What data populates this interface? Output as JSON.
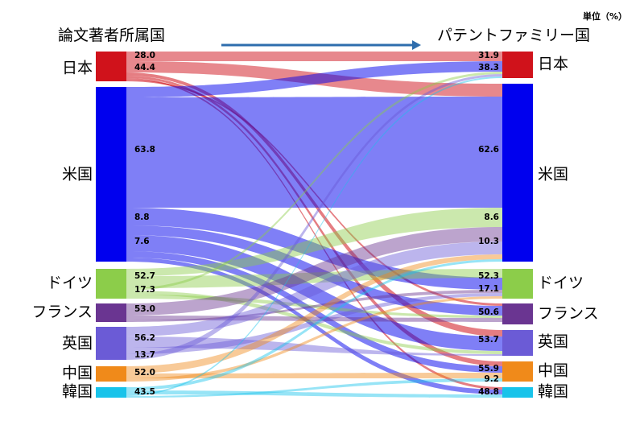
{
  "header": {
    "left_title": "論文著者所属国",
    "right_title": "パテントファミリー国",
    "unit": "単位（%）"
  },
  "chart_data": {
    "type": "sankey",
    "left_nodes": [
      {
        "id": "jp",
        "label": "日本",
        "color": "#d0121b"
      },
      {
        "id": "us",
        "label": "米国",
        "color": "#0000ee"
      },
      {
        "id": "de",
        "label": "ドイツ",
        "color": "#8ccd4a"
      },
      {
        "id": "fr",
        "label": "フランス",
        "color": "#6a3591"
      },
      {
        "id": "uk",
        "label": "英国",
        "color": "#6b5bd6"
      },
      {
        "id": "cn",
        "label": "中国",
        "color": "#f08a1a"
      },
      {
        "id": "kr",
        "label": "韓国",
        "color": "#18c3ea"
      }
    ],
    "right_nodes": [
      {
        "id": "jp",
        "label": "日本",
        "color": "#d0121b"
      },
      {
        "id": "us",
        "label": "米国",
        "color": "#0000ee"
      },
      {
        "id": "de",
        "label": "ドイツ",
        "color": "#8ccd4a"
      },
      {
        "id": "fr",
        "label": "フランス",
        "color": "#6a3591"
      },
      {
        "id": "uk",
        "label": "英国",
        "color": "#6b5bd6"
      },
      {
        "id": "cn",
        "label": "中国",
        "color": "#f08a1a"
      },
      {
        "id": "kr",
        "label": "韓国",
        "color": "#18c3ea"
      }
    ],
    "left_values": [
      {
        "node": "jp",
        "values": [
          "28.0",
          "44.4"
        ]
      },
      {
        "node": "us",
        "values": [
          "63.8",
          "8.8",
          "7.6"
        ]
      },
      {
        "node": "de",
        "values": [
          "52.7",
          "17.3"
        ]
      },
      {
        "node": "fr",
        "values": [
          "53.0"
        ]
      },
      {
        "node": "uk",
        "values": [
          "56.2",
          "13.7"
        ]
      },
      {
        "node": "cn",
        "values": [
          "52.0"
        ]
      },
      {
        "node": "kr",
        "values": [
          "43.5"
        ]
      }
    ],
    "right_values": [
      {
        "node": "jp",
        "values": [
          "31.9",
          "38.3"
        ]
      },
      {
        "node": "us",
        "values": [
          "62.6",
          "8.6",
          "10.3"
        ]
      },
      {
        "node": "de",
        "values": [
          "52.3",
          "17.1"
        ]
      },
      {
        "node": "fr",
        "values": [
          "50.6"
        ]
      },
      {
        "node": "uk",
        "values": [
          "53.7"
        ]
      },
      {
        "node": "cn",
        "values": [
          "55.9",
          "9.2"
        ]
      },
      {
        "node": "kr",
        "values": [
          "48.8"
        ]
      }
    ]
  }
}
